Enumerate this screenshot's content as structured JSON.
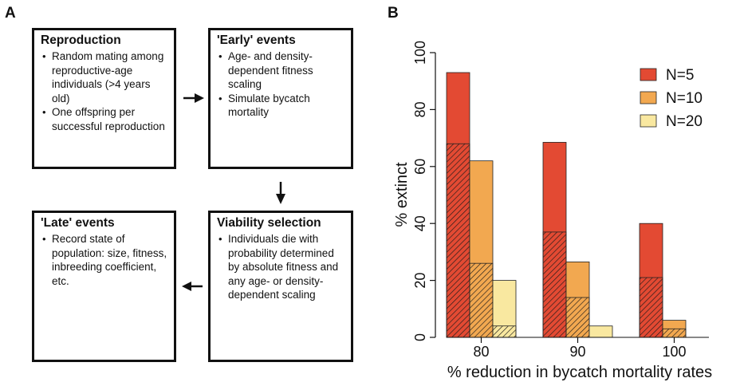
{
  "panels": {
    "a": "A",
    "b": "B"
  },
  "flow": {
    "reproduction": {
      "title": "Reproduction",
      "items": [
        "Random mating among reproductive-age individuals (>4 years old)",
        "One offspring per successful reproduction"
      ]
    },
    "early": {
      "title": "'Early' events",
      "items": [
        "Age- and density-dependent fitness scaling",
        "Simulate bycatch mortality"
      ]
    },
    "viability": {
      "title": "Viability selection",
      "items": [
        "Individuals die with probability determined by absolute fitness and any age- or density-dependent scaling"
      ]
    },
    "late": {
      "title": "'Late' events",
      "items": [
        "Record state of population: size, fitness, inbreeding coefficient, etc."
      ]
    }
  },
  "chart_data": {
    "type": "bar",
    "title": "",
    "xlabel": "% reduction in bycatch mortality rates",
    "ylabel": "% extinct",
    "ylim": [
      0,
      100
    ],
    "yticks": [
      0,
      20,
      40,
      60,
      80,
      100
    ],
    "categories": [
      "80",
      "90",
      "100"
    ],
    "series": [
      {
        "name": "N=5",
        "color": "#e34a33",
        "values": [
          93,
          68.5,
          40
        ],
        "hatched_values": [
          68,
          37,
          21
        ]
      },
      {
        "name": "N=10",
        "color": "#f2a850",
        "values": [
          62,
          26.5,
          6
        ],
        "hatched_values": [
          26,
          14,
          3
        ]
      },
      {
        "name": "N=20",
        "color": "#f9e8a0",
        "values": [
          20,
          4,
          0
        ],
        "hatched_values": [
          4,
          0,
          0
        ]
      }
    ],
    "legend_position": "top-right",
    "grid": false
  }
}
